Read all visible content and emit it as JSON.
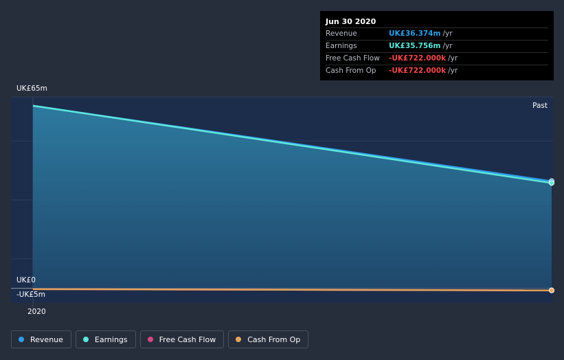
{
  "tooltip": {
    "date": "Jun 30 2020",
    "rows": [
      {
        "label": "Revenue",
        "value": "UK£36.374m",
        "unit": "/yr",
        "color": "#2e9ee8"
      },
      {
        "label": "Earnings",
        "value": "UK£35.756m",
        "unit": "/yr",
        "color": "#5ee6dc"
      },
      {
        "label": "Free Cash Flow",
        "value": "-UK£722.000k",
        "unit": "/yr",
        "color": "#f2474a"
      },
      {
        "label": "Cash From Op",
        "value": "-UK£722.000k",
        "unit": "/yr",
        "color": "#f2474a"
      }
    ]
  },
  "past_label": "Past",
  "legend": [
    {
      "label": "Revenue",
      "color": "#2e9ee8"
    },
    {
      "label": "Earnings",
      "color": "#5ee6dc"
    },
    {
      "label": "Free Cash Flow",
      "color": "#d6477e"
    },
    {
      "label": "Cash From Op",
      "color": "#e7a55a"
    }
  ],
  "chart_data": {
    "type": "area",
    "title": "",
    "xlabel": "",
    "ylabel": "",
    "x": [
      "2019-12-31",
      "2020-06-30"
    ],
    "ylim": [
      -5,
      65
    ],
    "y_ticks": [
      {
        "value": 65,
        "label": "UK£65m"
      },
      {
        "value": 0,
        "label": "UK£0"
      },
      {
        "value": -5,
        "label": "-UK£5m"
      }
    ],
    "x_ticks": [
      {
        "value": "2019-12-31",
        "label": "2020"
      }
    ],
    "grid": true,
    "legend_position": "bottom",
    "series": [
      {
        "name": "Revenue",
        "color": "#2e9ee8",
        "values": [
          62.0,
          36.374
        ]
      },
      {
        "name": "Earnings",
        "color": "#5ee6dc",
        "values": [
          62.0,
          35.756
        ]
      },
      {
        "name": "Free Cash Flow",
        "color": "#d6477e",
        "values": [
          -0.3,
          -0.722
        ]
      },
      {
        "name": "Cash From Op",
        "color": "#e7a55a",
        "values": [
          -0.3,
          -0.722
        ]
      }
    ]
  }
}
